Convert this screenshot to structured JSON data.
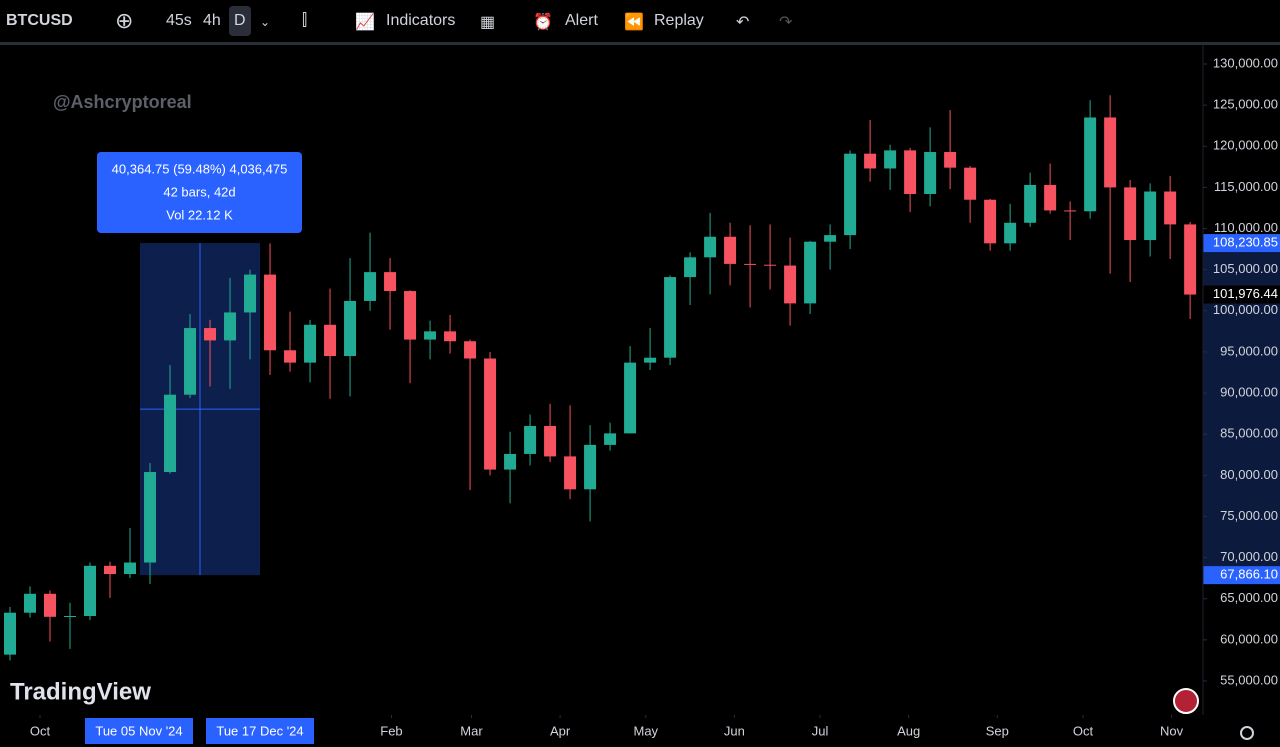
{
  "toolbar": {
    "symbol": "BTCUSD",
    "intervals": [
      "45s",
      "4h",
      "D"
    ],
    "indicators": "Indicators",
    "alert": "Alert",
    "replay": "Replay"
  },
  "watermark": "@Ashcryptoreal",
  "brand": "TradingView",
  "chart_data": {
    "type": "candlestick",
    "up_color": "#22ab94",
    "down_color": "#f7525f",
    "x": [
      3.5,
      10.5,
      17.5,
      24.5,
      31.5,
      38.5,
      45.5,
      52.5,
      59.5,
      66.5,
      73.5,
      80.5,
      87.5,
      94.5,
      101.5,
      108.5,
      115.5,
      122.5,
      129.5,
      136.5,
      143.5,
      150.5,
      157.5,
      164.5,
      171.5,
      178.5,
      185.5,
      192.5,
      199.5,
      206.5,
      213.5,
      220.5,
      227.5,
      234.5,
      241.5,
      248.5,
      255.5,
      262.5,
      269.5,
      276.5,
      283.5,
      290.5,
      297.5,
      304.5,
      311.5,
      318.5,
      325.5,
      332.5,
      339.5,
      346.5,
      353.5,
      360.5,
      367.5,
      374.5,
      381.5,
      388.5,
      395.5,
      402.5,
      409.5,
      416.5
    ],
    "open": [
      58200,
      63300,
      65600,
      62800,
      62900,
      69000,
      68000,
      69400,
      80400,
      89800,
      97900,
      96400,
      99800,
      104400,
      95200,
      93700,
      98300,
      94500,
      101200,
      104700,
      102400,
      96500,
      97500,
      96300,
      94200,
      80700,
      82600,
      86000,
      82300,
      78300,
      83700,
      85100,
      93700,
      94300,
      104100,
      106500,
      109000,
      105700,
      105600,
      105500,
      100900,
      108400,
      109200,
      119100,
      117300,
      119500,
      114200,
      119300,
      117400,
      113500,
      108200,
      110700,
      115300,
      112200,
      112100,
      123500,
      115000,
      108600,
      114500,
      110500
    ],
    "high": [
      64000,
      66500,
      66000,
      64500,
      69400,
      69500,
      73600,
      81500,
      93400,
      99600,
      98900,
      104000,
      105000,
      108200,
      99900,
      98900,
      102700,
      106400,
      109500,
      106400,
      102500,
      98800,
      99500,
      96500,
      95000,
      85300,
      87400,
      88700,
      88500,
      86100,
      86400,
      95700,
      97900,
      104300,
      107100,
      111900,
      110700,
      110400,
      110500,
      108900,
      108500,
      110500,
      119500,
      123200,
      120200,
      119800,
      122300,
      124400,
      117600,
      113600,
      113000,
      116800,
      117900,
      113300,
      125600,
      126200,
      115900,
      115500,
      116400,
      110800
    ],
    "low": [
      57500,
      62700,
      59800,
      58900,
      62400,
      65100,
      67500,
      66800,
      80200,
      89400,
      90800,
      90500,
      94100,
      92200,
      92600,
      91300,
      89300,
      89600,
      100000,
      97700,
      91200,
      94100,
      94800,
      78200,
      80000,
      76600,
      81200,
      81600,
      77100,
      74400,
      83000,
      85100,
      92800,
      93400,
      100700,
      102000,
      103100,
      100400,
      102600,
      98200,
      99600,
      105000,
      107500,
      115700,
      114700,
      112000,
      112700,
      114800,
      110700,
      107300,
      107300,
      110200,
      111800,
      108600,
      111200,
      104500,
      103500,
      106600,
      106300,
      99000
    ],
    "close": [
      63300,
      65600,
      62800,
      62900,
      69000,
      68000,
      69400,
      80400,
      89800,
      97900,
      96400,
      99800,
      104400,
      95200,
      93700,
      98300,
      94500,
      101200,
      104700,
      102400,
      96500,
      97500,
      96300,
      94200,
      80700,
      82600,
      86000,
      82300,
      78300,
      83700,
      85100,
      93700,
      94300,
      104100,
      106500,
      109000,
      105700,
      105600,
      105500,
      100900,
      108400,
      109200,
      119100,
      117300,
      119500,
      114200,
      119300,
      117400,
      113500,
      108200,
      110700,
      115300,
      112200,
      112100,
      123500,
      115000,
      108600,
      114500,
      110500,
      101976.44
    ],
    "xlim": [
      0,
      421
    ],
    "ylim": [
      50865,
      131945
    ],
    "xticks": [
      {
        "value": 14,
        "label": "Oct"
      },
      {
        "value": 137,
        "label": "Feb"
      },
      {
        "value": 165,
        "label": "Mar"
      },
      {
        "value": 196,
        "label": "Apr"
      },
      {
        "value": 226,
        "label": "May"
      },
      {
        "value": 257,
        "label": "Jun"
      },
      {
        "value": 287,
        "label": "Jul"
      },
      {
        "value": 318,
        "label": "Aug"
      },
      {
        "value": 349,
        "label": "Sep"
      },
      {
        "value": 379,
        "label": "Oct"
      },
      {
        "value": 410,
        "label": "Nov"
      }
    ],
    "yticks": [
      {
        "value": 55000,
        "label": "55,000.00"
      },
      {
        "value": 60000,
        "label": "60,000.00"
      },
      {
        "value": 65000,
        "label": "65,000.00"
      },
      {
        "value": 70000,
        "label": "70,000.00"
      },
      {
        "value": 75000,
        "label": "75,000.00"
      },
      {
        "value": 80000,
        "label": "80,000.00"
      },
      {
        "value": 85000,
        "label": "85,000.00"
      },
      {
        "value": 90000,
        "label": "90,000.00"
      },
      {
        "value": 95000,
        "label": "95,000.00"
      },
      {
        "value": 100000,
        "label": "100,000.00"
      },
      {
        "value": 105000,
        "label": "105,000.00"
      },
      {
        "value": 110000,
        "label": "110,000.00"
      },
      {
        "value": 115000,
        "label": "115,000.00"
      },
      {
        "value": 120000,
        "label": "120,000.00"
      },
      {
        "value": 125000,
        "label": "125,000.00"
      },
      {
        "value": 130000,
        "label": "130,000.00"
      }
    ],
    "last_price": {
      "value": 101976.44,
      "label": "101,976.44"
    },
    "measure": {
      "from_price": {
        "value": 67866.1,
        "label": "67,866.10"
      },
      "to_price": {
        "value": 108230.85,
        "label": "108,230.85"
      },
      "from_date": "Tue 05 Nov '24",
      "to_date": "Tue 17 Dec '24",
      "lines": [
        "40,364.75 (59.48%) 4,036,475",
        "42 bars, 42d",
        "Vol 22.12 K"
      ]
    }
  }
}
